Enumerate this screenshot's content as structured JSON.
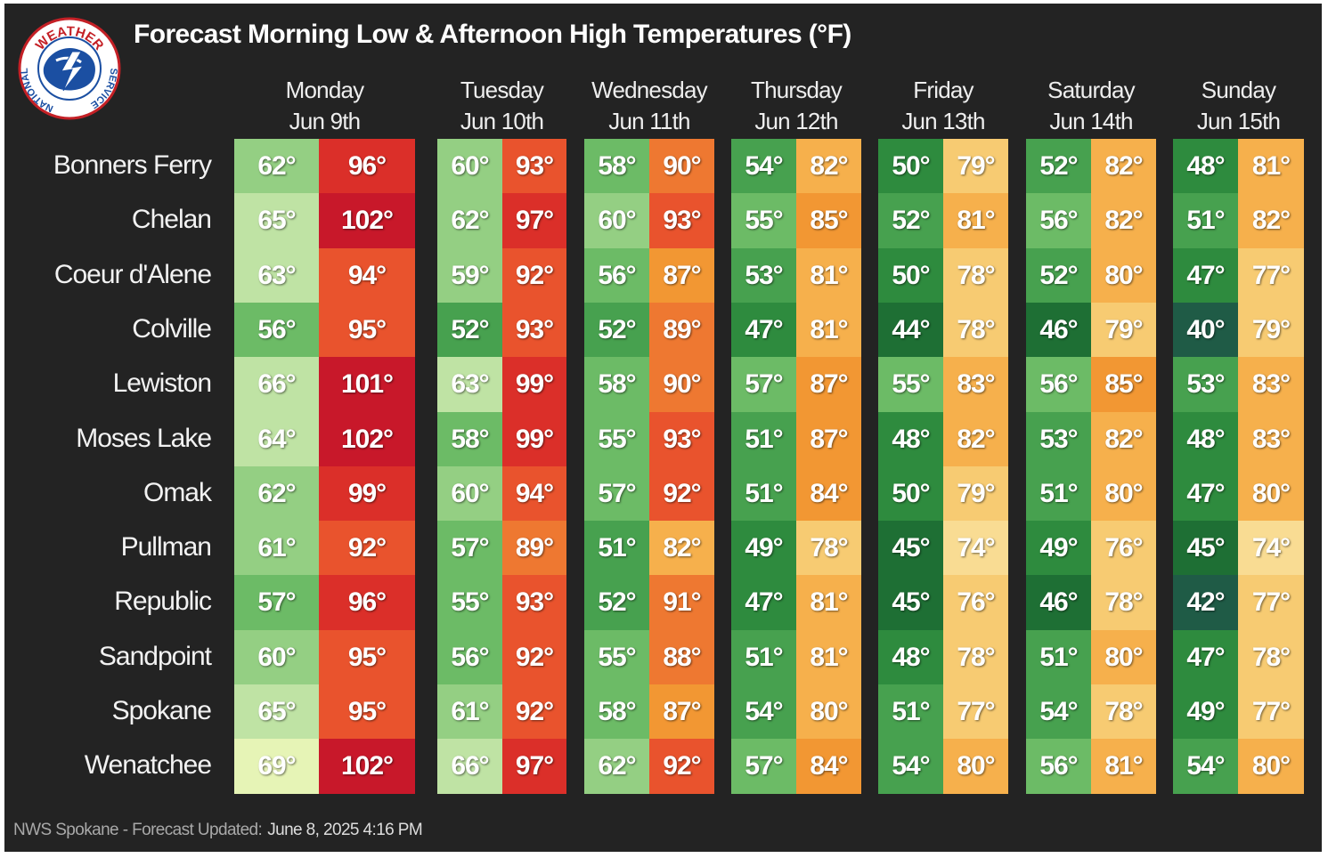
{
  "title": "Forecast Morning Low & Afternoon High Temperatures (°F)",
  "logo": {
    "icon": "nws-seal-icon",
    "text_top": "WEATHER",
    "text_left": "NATIONAL",
    "text_right": "SERVICE"
  },
  "footer": {
    "label": "NWS Spokane - Forecast Updated:",
    "timestamp": "June 8, 2025 4:16 PM"
  },
  "chart_data": {
    "type": "table",
    "title": "Forecast Morning Low & Afternoon High Temperatures (°F)",
    "unit": "°F",
    "days": [
      {
        "day": "Monday",
        "date": "Jun 9th"
      },
      {
        "day": "Tuesday",
        "date": "Jun 10th"
      },
      {
        "day": "Wednesday",
        "date": "Jun 11th"
      },
      {
        "day": "Thursday",
        "date": "Jun 12th"
      },
      {
        "day": "Friday",
        "date": "Jun 13th"
      },
      {
        "day": "Saturday",
        "date": "Jun 14th"
      },
      {
        "day": "Sunday",
        "date": "Jun 15th"
      }
    ],
    "cities": [
      "Bonners Ferry",
      "Chelan",
      "Coeur d'Alene",
      "Colville",
      "Lewiston",
      "Moses Lake",
      "Omak",
      "Pullman",
      "Republic",
      "Sandpoint",
      "Spokane",
      "Wenatchee"
    ],
    "lows": [
      [
        62,
        60,
        58,
        54,
        50,
        52,
        48
      ],
      [
        65,
        62,
        60,
        55,
        52,
        56,
        51
      ],
      [
        63,
        59,
        56,
        53,
        50,
        52,
        47
      ],
      [
        56,
        52,
        52,
        47,
        44,
        46,
        40
      ],
      [
        66,
        63,
        58,
        57,
        55,
        56,
        53
      ],
      [
        64,
        58,
        55,
        51,
        48,
        53,
        48
      ],
      [
        62,
        60,
        57,
        51,
        50,
        51,
        47
      ],
      [
        61,
        57,
        51,
        49,
        45,
        49,
        45
      ],
      [
        57,
        55,
        52,
        47,
        45,
        46,
        42
      ],
      [
        60,
        56,
        55,
        51,
        48,
        51,
        47
      ],
      [
        65,
        61,
        58,
        54,
        51,
        54,
        49
      ],
      [
        69,
        66,
        62,
        57,
        54,
        56,
        54
      ]
    ],
    "highs": [
      [
        96,
        93,
        90,
        82,
        79,
        82,
        81
      ],
      [
        102,
        97,
        93,
        85,
        81,
        82,
        82
      ],
      [
        94,
        92,
        87,
        81,
        78,
        80,
        77
      ],
      [
        95,
        93,
        89,
        81,
        78,
        79,
        79
      ],
      [
        101,
        99,
        90,
        87,
        83,
        85,
        83
      ],
      [
        102,
        99,
        93,
        87,
        82,
        82,
        83
      ],
      [
        99,
        94,
        92,
        84,
        79,
        80,
        80
      ],
      [
        92,
        89,
        82,
        78,
        74,
        76,
        74
      ],
      [
        96,
        93,
        91,
        81,
        76,
        78,
        77
      ],
      [
        95,
        92,
        88,
        81,
        78,
        80,
        78
      ],
      [
        95,
        92,
        87,
        80,
        77,
        78,
        77
      ],
      [
        102,
        97,
        92,
        84,
        80,
        81,
        80
      ]
    ],
    "colors": {
      "background": "#232323",
      "low_ramp": [
        "#1f5b46",
        "#1e6f34",
        "#2e8b3e",
        "#47a14f",
        "#6cbb66",
        "#94cf83",
        "#bfe3a4",
        "#e6f4b6"
      ],
      "high_ramp": [
        "#f9dc93",
        "#f7cb72",
        "#f6b04c",
        "#f29733",
        "#ee7831",
        "#e9532d",
        "#db2f29",
        "#c8182a"
      ]
    }
  }
}
